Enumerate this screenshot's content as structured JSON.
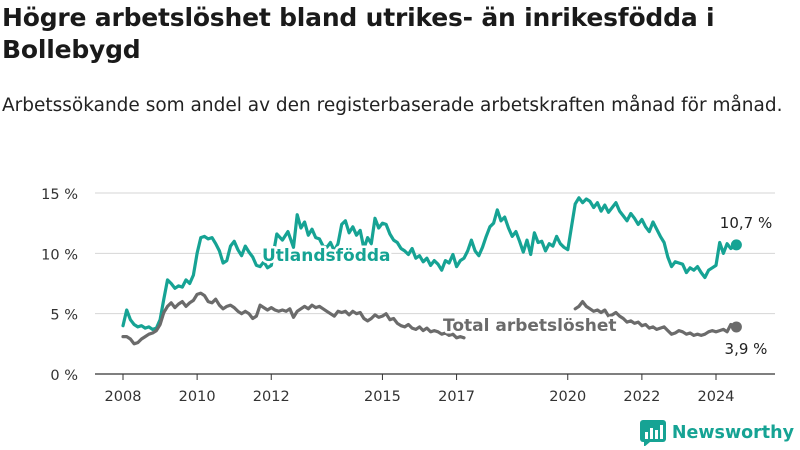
{
  "title": "Högre arbetslöshet bland utrikes- än inrikesfödda i Bollebygd",
  "subtitle": "Arbetssökande som andel av den registerbaserade arbetskraften månad för månad.",
  "brand": {
    "name": "Newsworthy",
    "icon": "bar-chart-logo-icon",
    "color": "#16a394"
  },
  "chart_data": {
    "type": "line",
    "y_ticks": [
      "0 %",
      "5 %",
      "10 %",
      "15 %"
    ],
    "x_ticks": [
      "2008",
      "2010",
      "2012",
      "2015",
      "2017",
      "2020",
      "2022",
      "2024"
    ],
    "ylim": [
      0,
      15
    ],
    "grid": true,
    "series": [
      {
        "name": "Utlandsfödda",
        "color": "#16a394",
        "last_value_label": "10,7 %",
        "points": [
          [
            2008.0,
            4.0
          ],
          [
            2008.1,
            5.3
          ],
          [
            2008.2,
            4.5
          ],
          [
            2008.3,
            4.1
          ],
          [
            2008.4,
            3.9
          ],
          [
            2008.5,
            4.0
          ],
          [
            2008.6,
            3.8
          ],
          [
            2008.7,
            3.9
          ],
          [
            2008.8,
            3.7
          ],
          [
            2008.9,
            3.8
          ],
          [
            2009.0,
            4.5
          ],
          [
            2009.1,
            6.2
          ],
          [
            2009.2,
            7.8
          ],
          [
            2009.3,
            7.5
          ],
          [
            2009.4,
            7.1
          ],
          [
            2009.5,
            7.3
          ],
          [
            2009.6,
            7.2
          ],
          [
            2009.7,
            7.8
          ],
          [
            2009.8,
            7.5
          ],
          [
            2009.9,
            8.2
          ],
          [
            2010.0,
            10.0
          ],
          [
            2010.1,
            11.3
          ],
          [
            2010.2,
            11.4
          ],
          [
            2010.3,
            11.2
          ],
          [
            2010.4,
            11.3
          ],
          [
            2010.5,
            10.8
          ],
          [
            2010.6,
            10.2
          ],
          [
            2010.7,
            9.2
          ],
          [
            2010.8,
            9.4
          ],
          [
            2010.9,
            10.6
          ],
          [
            2011.0,
            11.0
          ],
          [
            2011.1,
            10.3
          ],
          [
            2011.2,
            9.8
          ],
          [
            2011.3,
            10.6
          ],
          [
            2011.4,
            10.1
          ],
          [
            2011.5,
            9.7
          ],
          [
            2011.6,
            9.0
          ],
          [
            2011.7,
            8.9
          ],
          [
            2011.8,
            9.3
          ],
          [
            2011.9,
            8.8
          ],
          [
            2012.0,
            9.0
          ],
          [
            2012.15,
            11.6
          ],
          [
            2012.3,
            11.1
          ],
          [
            2012.45,
            11.8
          ],
          [
            2012.6,
            10.5
          ],
          [
            2012.7,
            13.2
          ],
          [
            2012.8,
            12.1
          ],
          [
            2012.9,
            12.6
          ],
          [
            2013.0,
            11.5
          ],
          [
            2013.1,
            12.0
          ],
          [
            2013.2,
            11.3
          ],
          [
            2013.3,
            11.2
          ],
          [
            2013.4,
            10.6
          ],
          [
            2013.5,
            10.5
          ],
          [
            2013.6,
            10.9
          ],
          [
            2013.7,
            10.2
          ],
          [
            2013.8,
            10.8
          ],
          [
            2013.9,
            12.4
          ],
          [
            2014.0,
            12.7
          ],
          [
            2014.1,
            11.7
          ],
          [
            2014.2,
            12.2
          ],
          [
            2014.3,
            11.5
          ],
          [
            2014.4,
            11.9
          ],
          [
            2014.5,
            10.4
          ],
          [
            2014.6,
            11.3
          ],
          [
            2014.7,
            10.8
          ],
          [
            2014.8,
            12.9
          ],
          [
            2014.9,
            12.1
          ],
          [
            2015.0,
            12.5
          ],
          [
            2015.1,
            12.4
          ],
          [
            2015.2,
            11.6
          ],
          [
            2015.3,
            11.1
          ],
          [
            2015.4,
            10.9
          ],
          [
            2015.5,
            10.4
          ],
          [
            2015.6,
            10.2
          ],
          [
            2015.7,
            9.9
          ],
          [
            2015.8,
            10.4
          ],
          [
            2015.9,
            9.6
          ],
          [
            2016.0,
            9.8
          ],
          [
            2016.1,
            9.3
          ],
          [
            2016.2,
            9.6
          ],
          [
            2016.3,
            9.0
          ],
          [
            2016.4,
            9.4
          ],
          [
            2016.5,
            9.1
          ],
          [
            2016.6,
            8.6
          ],
          [
            2016.7,
            9.4
          ],
          [
            2016.8,
            9.2
          ],
          [
            2016.9,
            9.9
          ],
          [
            2017.0,
            8.9
          ],
          [
            2017.1,
            9.4
          ],
          [
            2017.2,
            9.6
          ],
          [
            2017.3,
            10.2
          ],
          [
            2017.4,
            11.1
          ],
          [
            2017.5,
            10.2
          ],
          [
            2017.6,
            9.8
          ],
          [
            2017.7,
            10.5
          ],
          [
            2017.8,
            11.4
          ],
          [
            2017.9,
            12.2
          ],
          [
            2018.0,
            12.5
          ],
          [
            2018.1,
            13.6
          ],
          [
            2018.2,
            12.7
          ],
          [
            2018.3,
            13.0
          ],
          [
            2018.4,
            12.1
          ],
          [
            2018.5,
            11.4
          ],
          [
            2018.6,
            11.8
          ],
          [
            2018.7,
            11.0
          ],
          [
            2018.8,
            10.1
          ],
          [
            2018.9,
            11.1
          ],
          [
            2019.0,
            9.9
          ],
          [
            2019.1,
            11.7
          ],
          [
            2019.2,
            10.9
          ],
          [
            2019.3,
            11.0
          ],
          [
            2019.4,
            10.2
          ],
          [
            2019.5,
            10.8
          ],
          [
            2019.6,
            10.6
          ],
          [
            2019.7,
            11.4
          ],
          [
            2019.8,
            10.8
          ],
          [
            2019.9,
            10.5
          ],
          [
            2020.0,
            10.3
          ],
          [
            2020.1,
            12.2
          ],
          [
            2020.2,
            14.1
          ],
          [
            2020.3,
            14.6
          ],
          [
            2020.4,
            14.2
          ],
          [
            2020.5,
            14.5
          ],
          [
            2020.6,
            14.3
          ],
          [
            2020.7,
            13.8
          ],
          [
            2020.8,
            14.2
          ],
          [
            2020.9,
            13.5
          ],
          [
            2021.0,
            14.0
          ],
          [
            2021.1,
            13.4
          ],
          [
            2021.2,
            13.8
          ],
          [
            2021.3,
            14.2
          ],
          [
            2021.4,
            13.5
          ],
          [
            2021.5,
            13.1
          ],
          [
            2021.6,
            12.7
          ],
          [
            2021.7,
            13.3
          ],
          [
            2021.8,
            12.9
          ],
          [
            2021.9,
            12.4
          ],
          [
            2022.0,
            12.8
          ],
          [
            2022.1,
            12.2
          ],
          [
            2022.2,
            11.8
          ],
          [
            2022.3,
            12.6
          ],
          [
            2022.4,
            12.0
          ],
          [
            2022.5,
            11.4
          ],
          [
            2022.6,
            10.9
          ],
          [
            2022.7,
            9.7
          ],
          [
            2022.8,
            8.9
          ],
          [
            2022.9,
            9.3
          ],
          [
            2023.0,
            9.2
          ],
          [
            2023.1,
            9.1
          ],
          [
            2023.2,
            8.4
          ],
          [
            2023.3,
            8.8
          ],
          [
            2023.4,
            8.6
          ],
          [
            2023.5,
            8.9
          ],
          [
            2023.6,
            8.4
          ],
          [
            2023.7,
            8.0
          ],
          [
            2023.8,
            8.6
          ],
          [
            2023.9,
            8.8
          ],
          [
            2024.0,
            9.0
          ],
          [
            2024.1,
            10.9
          ],
          [
            2024.2,
            10.0
          ],
          [
            2024.3,
            10.8
          ],
          [
            2024.4,
            10.4
          ],
          [
            2024.55,
            10.7
          ]
        ]
      },
      {
        "name": "Total arbetslöshet",
        "color": "#6b6b6b",
        "last_value_label": "3,9 %",
        "points": [
          [
            2008.0,
            3.1
          ],
          [
            2008.1,
            3.1
          ],
          [
            2008.2,
            2.9
          ],
          [
            2008.3,
            2.5
          ],
          [
            2008.4,
            2.6
          ],
          [
            2008.5,
            2.9
          ],
          [
            2008.6,
            3.1
          ],
          [
            2008.7,
            3.3
          ],
          [
            2008.8,
            3.4
          ],
          [
            2008.9,
            3.6
          ],
          [
            2009.0,
            4.1
          ],
          [
            2009.1,
            5.1
          ],
          [
            2009.2,
            5.6
          ],
          [
            2009.3,
            5.9
          ],
          [
            2009.4,
            5.5
          ],
          [
            2009.5,
            5.8
          ],
          [
            2009.6,
            6.0
          ],
          [
            2009.7,
            5.6
          ],
          [
            2009.8,
            5.9
          ],
          [
            2009.9,
            6.1
          ],
          [
            2010.0,
            6.6
          ],
          [
            2010.1,
            6.7
          ],
          [
            2010.2,
            6.5
          ],
          [
            2010.3,
            6.0
          ],
          [
            2010.4,
            5.9
          ],
          [
            2010.5,
            6.2
          ],
          [
            2010.6,
            5.7
          ],
          [
            2010.7,
            5.4
          ],
          [
            2010.8,
            5.6
          ],
          [
            2010.9,
            5.7
          ],
          [
            2011.0,
            5.5
          ],
          [
            2011.1,
            5.2
          ],
          [
            2011.2,
            5.0
          ],
          [
            2011.3,
            5.2
          ],
          [
            2011.4,
            5.0
          ],
          [
            2011.5,
            4.6
          ],
          [
            2011.6,
            4.8
          ],
          [
            2011.7,
            5.7
          ],
          [
            2011.8,
            5.5
          ],
          [
            2011.9,
            5.3
          ],
          [
            2012.0,
            5.5
          ],
          [
            2012.1,
            5.3
          ],
          [
            2012.2,
            5.2
          ],
          [
            2012.3,
            5.3
          ],
          [
            2012.4,
            5.2
          ],
          [
            2012.5,
            5.4
          ],
          [
            2012.6,
            4.7
          ],
          [
            2012.7,
            5.2
          ],
          [
            2012.8,
            5.4
          ],
          [
            2012.9,
            5.6
          ],
          [
            2013.0,
            5.4
          ],
          [
            2013.1,
            5.7
          ],
          [
            2013.2,
            5.5
          ],
          [
            2013.3,
            5.6
          ],
          [
            2013.4,
            5.4
          ],
          [
            2013.5,
            5.2
          ],
          [
            2013.6,
            5.0
          ],
          [
            2013.7,
            4.8
          ],
          [
            2013.8,
            5.2
          ],
          [
            2013.9,
            5.1
          ],
          [
            2014.0,
            5.2
          ],
          [
            2014.1,
            4.9
          ],
          [
            2014.2,
            5.2
          ],
          [
            2014.3,
            5.0
          ],
          [
            2014.4,
            5.1
          ],
          [
            2014.5,
            4.6
          ],
          [
            2014.6,
            4.4
          ],
          [
            2014.7,
            4.6
          ],
          [
            2014.8,
            4.9
          ],
          [
            2014.9,
            4.7
          ],
          [
            2015.0,
            4.8
          ],
          [
            2015.1,
            5.0
          ],
          [
            2015.2,
            4.5
          ],
          [
            2015.3,
            4.6
          ],
          [
            2015.4,
            4.2
          ],
          [
            2015.5,
            4.0
          ],
          [
            2015.6,
            3.9
          ],
          [
            2015.7,
            4.1
          ],
          [
            2015.8,
            3.8
          ],
          [
            2015.9,
            3.7
          ],
          [
            2016.0,
            3.9
          ],
          [
            2016.1,
            3.6
          ],
          [
            2016.2,
            3.8
          ],
          [
            2016.3,
            3.5
          ],
          [
            2016.4,
            3.6
          ],
          [
            2016.5,
            3.5
          ],
          [
            2016.6,
            3.3
          ],
          [
            2016.7,
            3.4
          ],
          [
            2016.8,
            3.2
          ],
          [
            2016.9,
            3.3
          ],
          [
            2017.0,
            3.0
          ],
          [
            2017.1,
            3.1
          ],
          [
            2017.2,
            3.0
          ],
          [
            2020.2,
            5.4
          ],
          [
            2020.3,
            5.6
          ],
          [
            2020.4,
            6.0
          ],
          [
            2020.5,
            5.6
          ],
          [
            2020.6,
            5.4
          ],
          [
            2020.7,
            5.2
          ],
          [
            2020.8,
            5.3
          ],
          [
            2020.9,
            5.1
          ],
          [
            2021.0,
            5.3
          ],
          [
            2021.1,
            4.8
          ],
          [
            2021.2,
            4.9
          ],
          [
            2021.3,
            5.1
          ],
          [
            2021.4,
            4.8
          ],
          [
            2021.5,
            4.6
          ],
          [
            2021.6,
            4.3
          ],
          [
            2021.7,
            4.4
          ],
          [
            2021.8,
            4.2
          ],
          [
            2021.9,
            4.3
          ],
          [
            2022.0,
            4.0
          ],
          [
            2022.1,
            4.1
          ],
          [
            2022.2,
            3.8
          ],
          [
            2022.3,
            3.9
          ],
          [
            2022.4,
            3.7
          ],
          [
            2022.5,
            3.8
          ],
          [
            2022.6,
            3.9
          ],
          [
            2022.7,
            3.6
          ],
          [
            2022.8,
            3.3
          ],
          [
            2022.9,
            3.4
          ],
          [
            2023.0,
            3.6
          ],
          [
            2023.1,
            3.5
          ],
          [
            2023.2,
            3.3
          ],
          [
            2023.3,
            3.4
          ],
          [
            2023.4,
            3.2
          ],
          [
            2023.5,
            3.3
          ],
          [
            2023.6,
            3.2
          ],
          [
            2023.7,
            3.3
          ],
          [
            2023.8,
            3.5
          ],
          [
            2023.9,
            3.6
          ],
          [
            2024.0,
            3.5
          ],
          [
            2024.1,
            3.6
          ],
          [
            2024.2,
            3.7
          ],
          [
            2024.3,
            3.5
          ],
          [
            2024.4,
            4.1
          ],
          [
            2024.55,
            3.9
          ]
        ]
      }
    ]
  }
}
